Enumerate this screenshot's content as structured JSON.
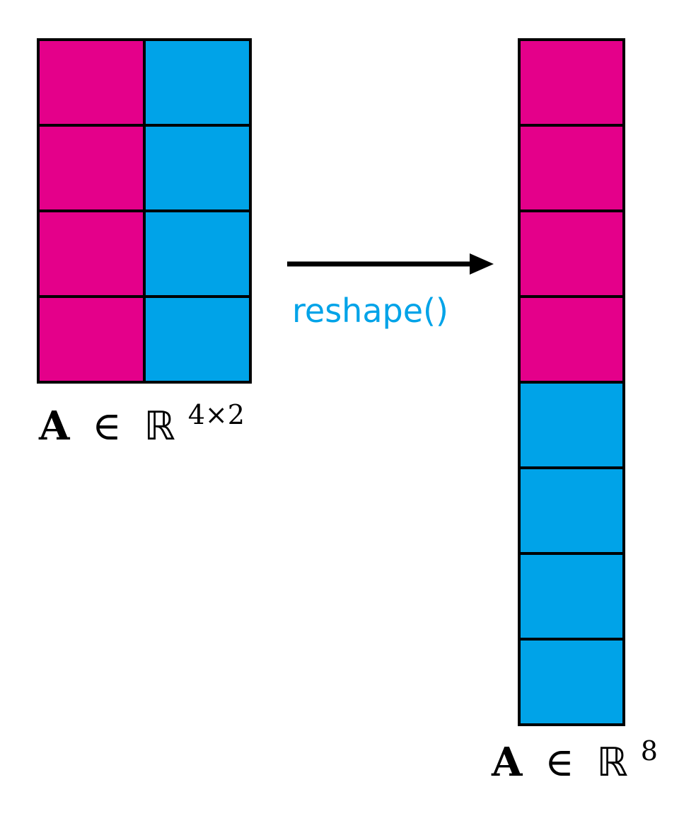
{
  "colors": {
    "first_column": "#E4008A",
    "second_column": "#00A3E8",
    "outline": "#000000",
    "arrow": "#000000",
    "operation_text": "#00A3E8"
  },
  "matrix": {
    "rows": 4,
    "cols": 2,
    "label": {
      "symbol": "A",
      "relation": "∈",
      "set": "ℝ",
      "dims": "4×2"
    }
  },
  "vector": {
    "length": 8,
    "label": {
      "symbol": "A",
      "relation": "∈",
      "set": "ℝ",
      "dims": "8"
    }
  },
  "operation": {
    "label": "reshape()"
  }
}
